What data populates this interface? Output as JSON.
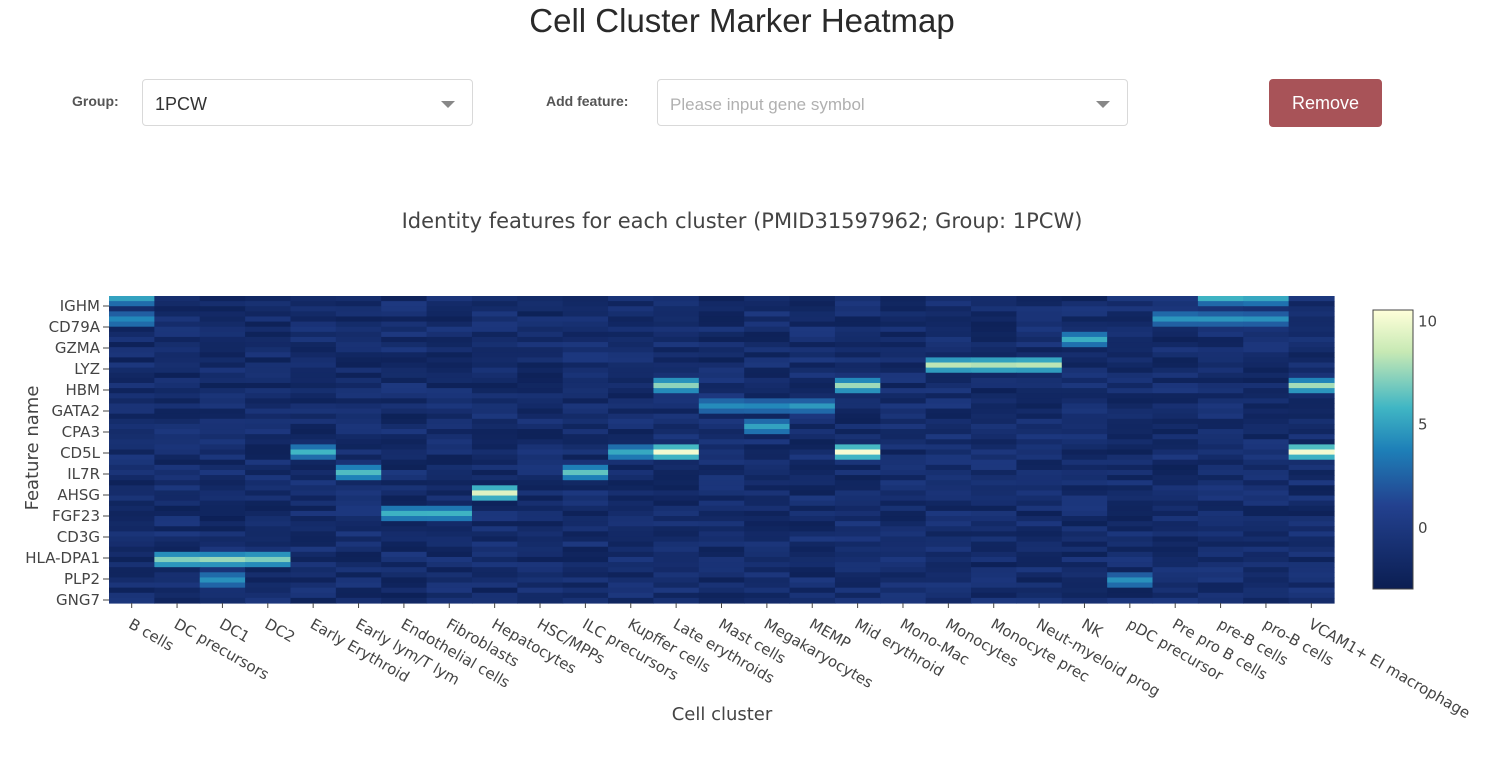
{
  "page": {
    "title": "Cell Cluster Marker Heatmap"
  },
  "controls": {
    "group_label": "Group:",
    "group_value": "1PCW",
    "feature_label": "Add feature:",
    "feature_placeholder": "Please input gene symbol",
    "remove_label": "Remove"
  },
  "colors": {
    "button": "#a85358",
    "colorscale": [
      "#0b1e52",
      "#23418f",
      "#1e80b8",
      "#40b6c4",
      "#c7e9b4",
      "#ffffd9"
    ]
  },
  "chart_data": {
    "type": "heatmap",
    "title": "Identity features for each cluster (PMID31597962; Group: 1PCW)",
    "xlabel": "Cell cluster",
    "ylabel": "Feature name",
    "colorbar": {
      "ticks": [
        10,
        5,
        0
      ],
      "range": [
        -3,
        10.5
      ],
      "colorscale": "YlGnBu (reversed)"
    },
    "x": [
      "B cells",
      "DC precursors",
      "DC1",
      "DC2",
      "Early Erythroid",
      "Early lym/T lym",
      "Endothelial cells",
      "Fibroblasts",
      "Hepatocytes",
      "HSC/MPPs",
      "ILC precursors",
      "Kupffer cells",
      "Late erythroids",
      "Mast cells",
      "Megakaryocytes",
      "MEMP",
      "Mid erythroid",
      "Mono-Mac",
      "Monocytes",
      "Monocyte prec",
      "Neut-myeloid prog",
      "NK",
      "pDC precursor",
      "Pre pro B cells",
      "pre-B cells",
      "pro-B cells",
      "VCAM1+ EI macrophage"
    ],
    "y_ticks": [
      "IGHM",
      "CD79A",
      "GZMA",
      "LYZ",
      "HBM",
      "GATA2",
      "CPA3",
      "CD5L",
      "IL7R",
      "AHSG",
      "FGF23",
      "CD3G",
      "HLA-DPA1",
      "PLP2",
      "GNG7"
    ],
    "highlights": [
      {
        "feature": "IGHM",
        "clusters": [
          "B cells",
          "pre-B cells",
          "pro-B cells"
        ],
        "value": 5
      },
      {
        "feature": "CD79A",
        "clusters": [
          "B cells",
          "Pre pro B cells",
          "pre-B cells",
          "pro-B cells"
        ],
        "value": 4
      },
      {
        "feature": "GZMA",
        "clusters": [
          "NK"
        ],
        "value": 5
      },
      {
        "feature": "LYZ",
        "clusters": [
          "Monocytes",
          "Monocyte prec",
          "Neut-myeloid prog"
        ],
        "value": 8
      },
      {
        "feature": "HBM",
        "clusters": [
          "Late erythroids",
          "Mid erythroid",
          "VCAM1+ EI macrophage"
        ],
        "value": 7
      },
      {
        "feature": "GATA2",
        "clusters": [
          "Mast cells",
          "Megakaryocytes",
          "MEMP"
        ],
        "value": 4
      },
      {
        "feature": "CPA3",
        "clusters": [
          "Megakaryocytes"
        ],
        "value": 5
      },
      {
        "feature": "CD5L",
        "clusters": [
          "Late erythroids",
          "Mid erythroid",
          "VCAM1+ EI macrophage"
        ],
        "value": 10
      },
      {
        "feature": "CD5L",
        "clusters": [
          "Early Erythroid",
          "Kupffer cells"
        ],
        "value": 5
      },
      {
        "feature": "IL7R",
        "clusters": [
          "ILC precursors",
          "Early lym/T lym"
        ],
        "value": 6
      },
      {
        "feature": "AHSG",
        "clusters": [
          "Hepatocytes"
        ],
        "value": 9
      },
      {
        "feature": "FGF23",
        "clusters": [
          "Fibroblasts",
          "Endothelial cells"
        ],
        "value": 5
      },
      {
        "feature": "HLA-DPA1",
        "clusters": [
          "DC1",
          "DC2",
          "DC precursors"
        ],
        "value": 7
      },
      {
        "feature": "PLP2",
        "clusters": [
          "pDC precursor",
          "DC1"
        ],
        "value": 4
      }
    ]
  }
}
